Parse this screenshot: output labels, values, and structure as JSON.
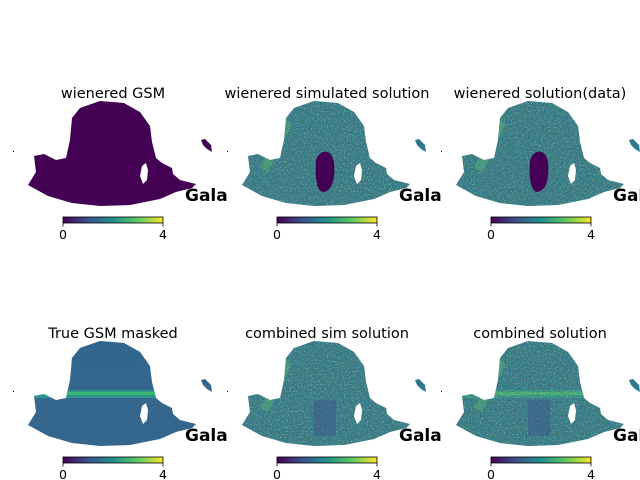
{
  "figure": {
    "colorbar": {
      "ticks": [
        "0",
        "4"
      ],
      "range": [
        0,
        4
      ],
      "colormap": [
        "#440154",
        "#3b528b",
        "#21918c",
        "#5ec962",
        "#fde725"
      ]
    },
    "coordsys_label": "Gala"
  },
  "chart_data": [
    {
      "type": "heatmap",
      "title": "wienered GSM",
      "projection": "mollweide",
      "vmin": 0,
      "vmax": 4,
      "pattern": "uniform-zero"
    },
    {
      "type": "heatmap",
      "title": "wienered simulated solution",
      "projection": "mollweide",
      "vmin": 0,
      "vmax": 4,
      "pattern": "noisy-with-zero-blob"
    },
    {
      "type": "heatmap",
      "title": "wienered solution(data)",
      "projection": "mollweide",
      "vmin": 0,
      "vmax": 4,
      "pattern": "noisy-with-zero-blob"
    },
    {
      "type": "heatmap",
      "title": "True GSM masked",
      "projection": "mollweide",
      "vmin": 0,
      "vmax": 4,
      "pattern": "smooth-galactic-plane"
    },
    {
      "type": "heatmap",
      "title": "combined sim solution",
      "projection": "mollweide",
      "vmin": 0,
      "vmax": 4,
      "pattern": "noisy"
    },
    {
      "type": "heatmap",
      "title": "combined solution",
      "projection": "mollweide",
      "vmin": 0,
      "vmax": 4,
      "pattern": "noisy-with-plane"
    }
  ]
}
